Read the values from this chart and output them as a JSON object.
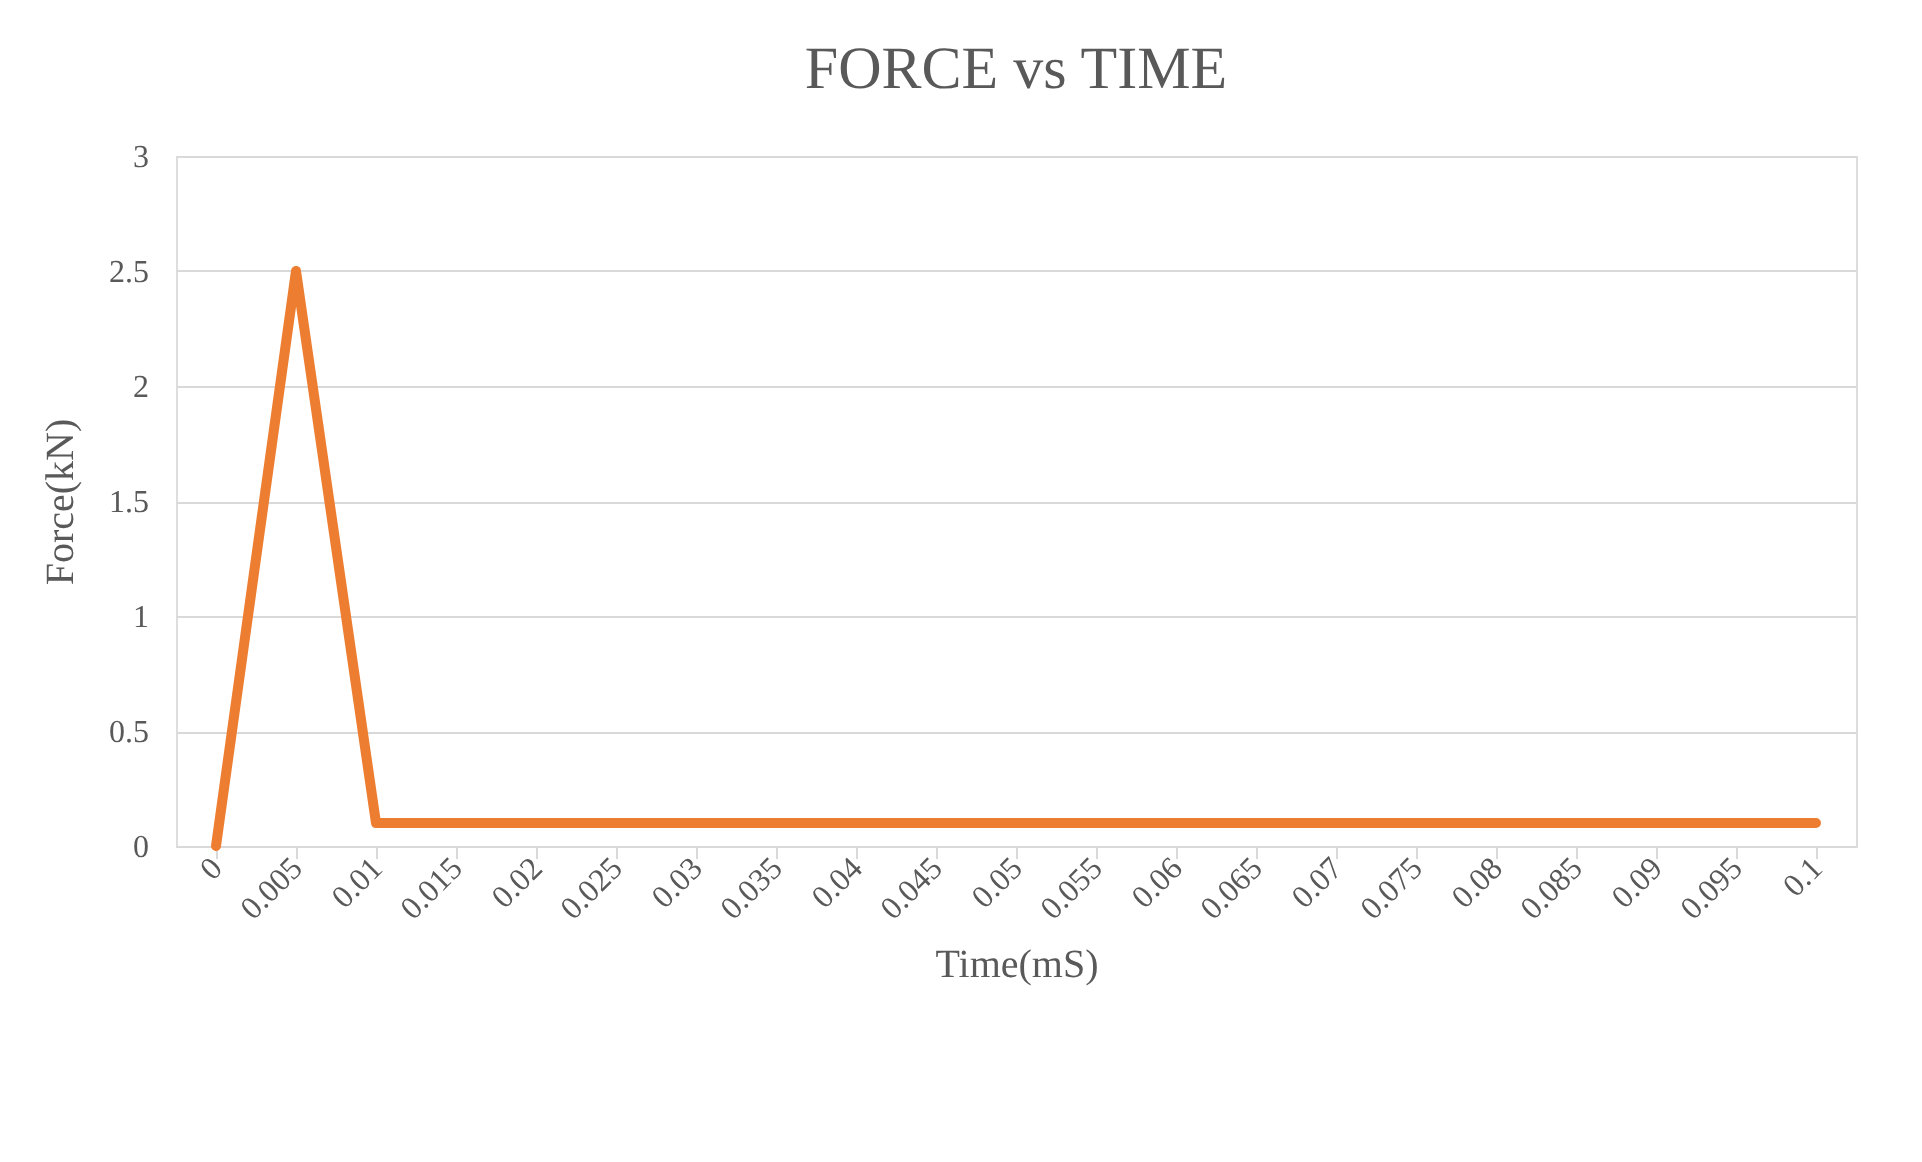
{
  "chart_data": {
    "type": "line",
    "title": "FORCE vs TIME",
    "xlabel": "Time(mS)",
    "ylabel": "Force(kN)",
    "categories": [
      "0",
      "0.005",
      "0.01",
      "0.015",
      "0.02",
      "0.025",
      "0.03",
      "0.035",
      "0.04",
      "0.045",
      "0.05",
      "0.055",
      "0.06",
      "0.065",
      "0.07",
      "0.075",
      "0.08",
      "0.085",
      "0.09",
      "0.095",
      "0.1"
    ],
    "series": [
      {
        "color": "#ed7d31",
        "values": [
          0,
          2.5,
          0.1,
          0.1,
          0.1,
          0.1,
          0.1,
          0.1,
          0.1,
          0.1,
          0.1,
          0.1,
          0.1,
          0.1,
          0.1,
          0.1,
          0.1,
          0.1,
          0.1,
          0.1,
          0.1
        ]
      }
    ],
    "ylim": [
      0,
      3
    ],
    "yticks": [
      0,
      0.5,
      1,
      1.5,
      2,
      2.5,
      3
    ],
    "grid": "y",
    "marker": "none",
    "line_style": "solid"
  }
}
